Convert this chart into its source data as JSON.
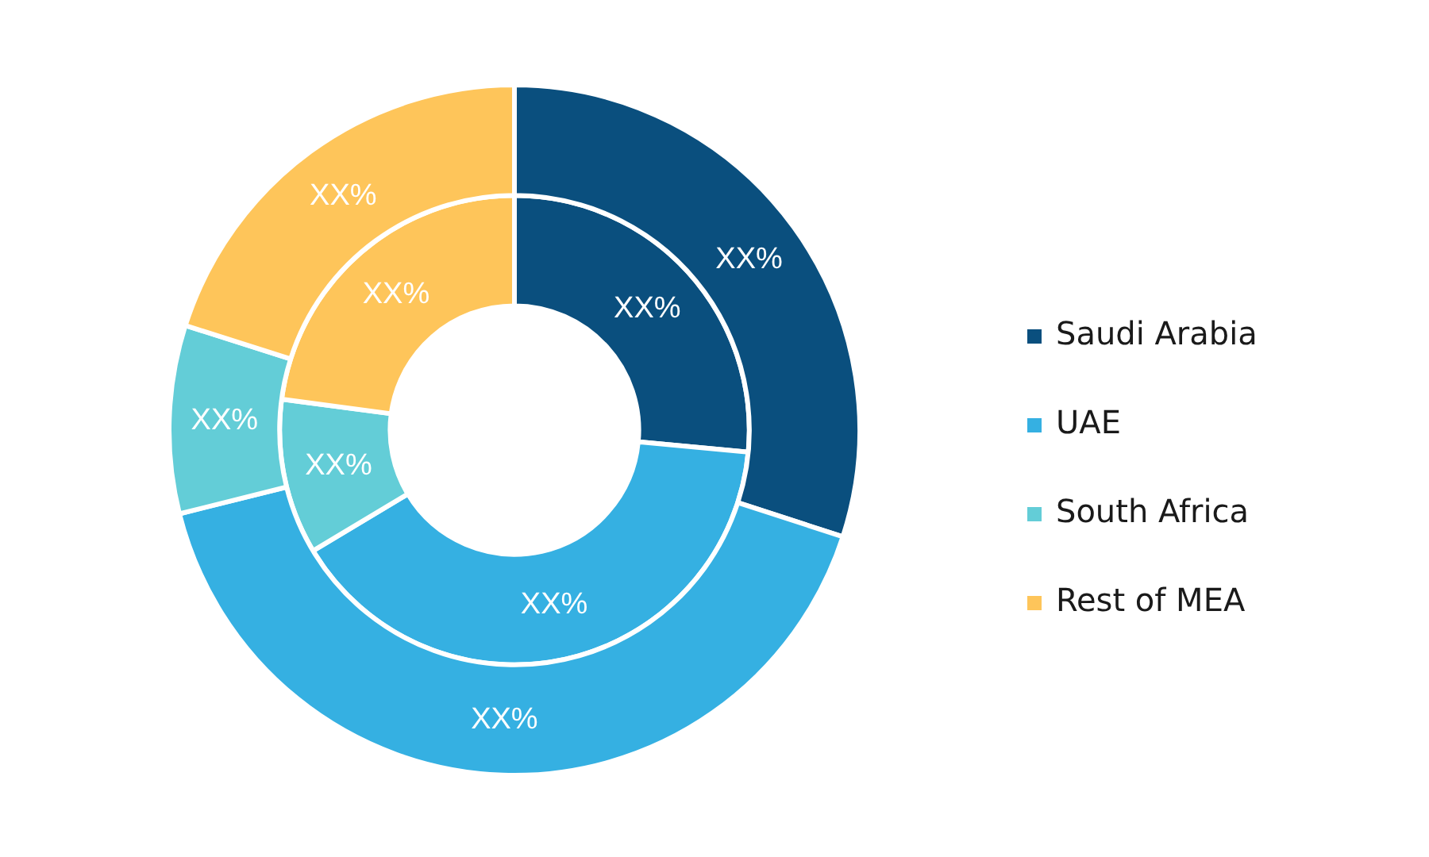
{
  "chart_data": {
    "type": "donut",
    "categories": [
      "Saudi Arabia",
      "UAE",
      "South Africa",
      "Rest of MEA"
    ],
    "colors": [
      "#0a4f7e",
      "#35b0e2",
      "#63cdd7",
      "#fec55a"
    ],
    "series": [
      {
        "values": [
          30.0,
          41.1,
          8.8,
          20.1
        ],
        "value_labels": [
          "XX%",
          "XX%",
          "XX%",
          "XX%"
        ]
      },
      {
        "values": [
          26.5,
          39.9,
          10.7,
          22.9
        ],
        "value_labels": [
          "XX%",
          "XX%",
          "XX%",
          "XX%"
        ]
      }
    ],
    "legend": "right"
  }
}
